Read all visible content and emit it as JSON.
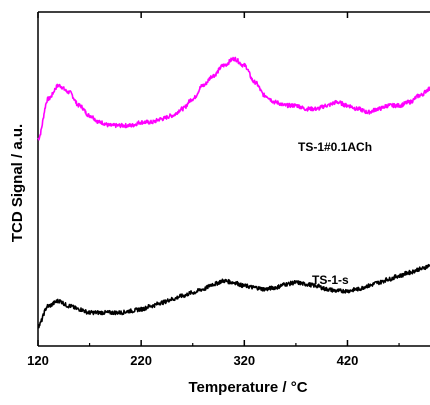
{
  "chart_data": {
    "type": "line",
    "xlabel": "Temperature / °C",
    "ylabel": "TCD Signal / a.u.",
    "xlim": [
      120,
      500
    ],
    "x_ticks": [
      120,
      220,
      320,
      420
    ],
    "y_ticks_shown": false,
    "grid": false,
    "legend": "none",
    "series": [
      {
        "name": "TS-1#0.1ACh",
        "color": "#ff00ff",
        "x": [
          120,
          130,
          140,
          150,
          160,
          170,
          180,
          190,
          200,
          210,
          220,
          230,
          240,
          250,
          260,
          270,
          280,
          290,
          300,
          310,
          320,
          330,
          340,
          350,
          360,
          370,
          380,
          390,
          400,
          410,
          420,
          430,
          440,
          450,
          460,
          470,
          480,
          490,
          500
        ],
        "y": [
          0.62,
          0.74,
          0.78,
          0.76,
          0.72,
          0.69,
          0.67,
          0.66,
          0.66,
          0.66,
          0.67,
          0.67,
          0.68,
          0.69,
          0.71,
          0.74,
          0.78,
          0.81,
          0.84,
          0.86,
          0.84,
          0.79,
          0.75,
          0.73,
          0.72,
          0.72,
          0.71,
          0.71,
          0.72,
          0.73,
          0.72,
          0.71,
          0.7,
          0.71,
          0.72,
          0.72,
          0.73,
          0.75,
          0.77
        ]
      },
      {
        "name": "TS-1-s",
        "color": "#000000",
        "x": [
          120,
          130,
          140,
          150,
          160,
          170,
          180,
          190,
          200,
          210,
          220,
          230,
          240,
          250,
          260,
          270,
          280,
          290,
          300,
          310,
          320,
          330,
          340,
          350,
          360,
          370,
          380,
          390,
          400,
          410,
          420,
          430,
          440,
          450,
          460,
          470,
          480,
          490,
          500
        ],
        "y": [
          0.06,
          0.12,
          0.135,
          0.12,
          0.11,
          0.1,
          0.1,
          0.1,
          0.1,
          0.105,
          0.11,
          0.12,
          0.13,
          0.14,
          0.15,
          0.16,
          0.17,
          0.185,
          0.195,
          0.19,
          0.18,
          0.175,
          0.17,
          0.175,
          0.185,
          0.19,
          0.185,
          0.18,
          0.17,
          0.165,
          0.165,
          0.17,
          0.18,
          0.19,
          0.2,
          0.21,
          0.22,
          0.23,
          0.24
        ]
      }
    ],
    "annotations": [
      {
        "text": "TS-1#0.1ACh",
        "series": 0
      },
      {
        "text": "TS-1-s",
        "series": 1
      }
    ]
  }
}
